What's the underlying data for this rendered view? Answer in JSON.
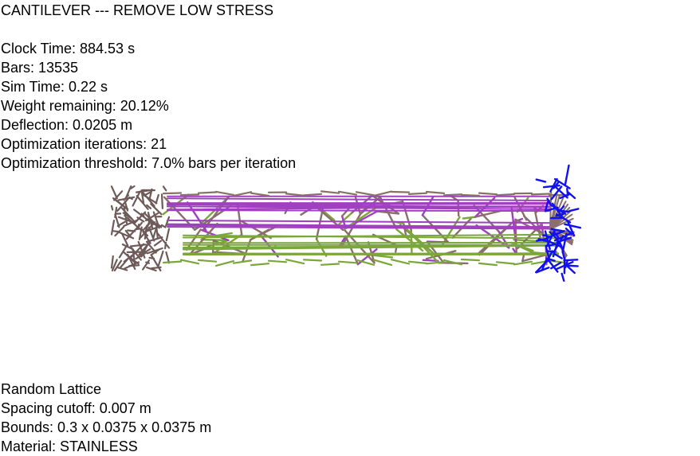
{
  "title": "CANTILEVER --- REMOVE LOW STRESS",
  "stats": {
    "clock_time": "Clock Time: 884.53 s",
    "bars": "Bars: 13535",
    "sim_time": "Sim Time: 0.22 s",
    "weight_remaining": "Weight remaining: 20.12%",
    "deflection": "Deflection: 0.0205 m",
    "opt_iterations": "Optimization iterations: 21",
    "opt_threshold": "Optimization threshold: 7.0% bars per iteration"
  },
  "lattice_info": {
    "type": "Random Lattice",
    "spacing_cutoff": "Spacing cutoff: 0.007 m",
    "bounds": "Bounds: 0.3 x 0.0375 x 0.0375 m",
    "material": "Material: STAINLESS"
  },
  "colors": {
    "background": "#ffffff",
    "text": "#000000",
    "bar_neutral": "#8a6f6a",
    "bar_tension": "#a040c0",
    "bar_compression": "#7aa63a",
    "load_arrows": "#1010f0",
    "fixed_support": "#6e5a58"
  }
}
